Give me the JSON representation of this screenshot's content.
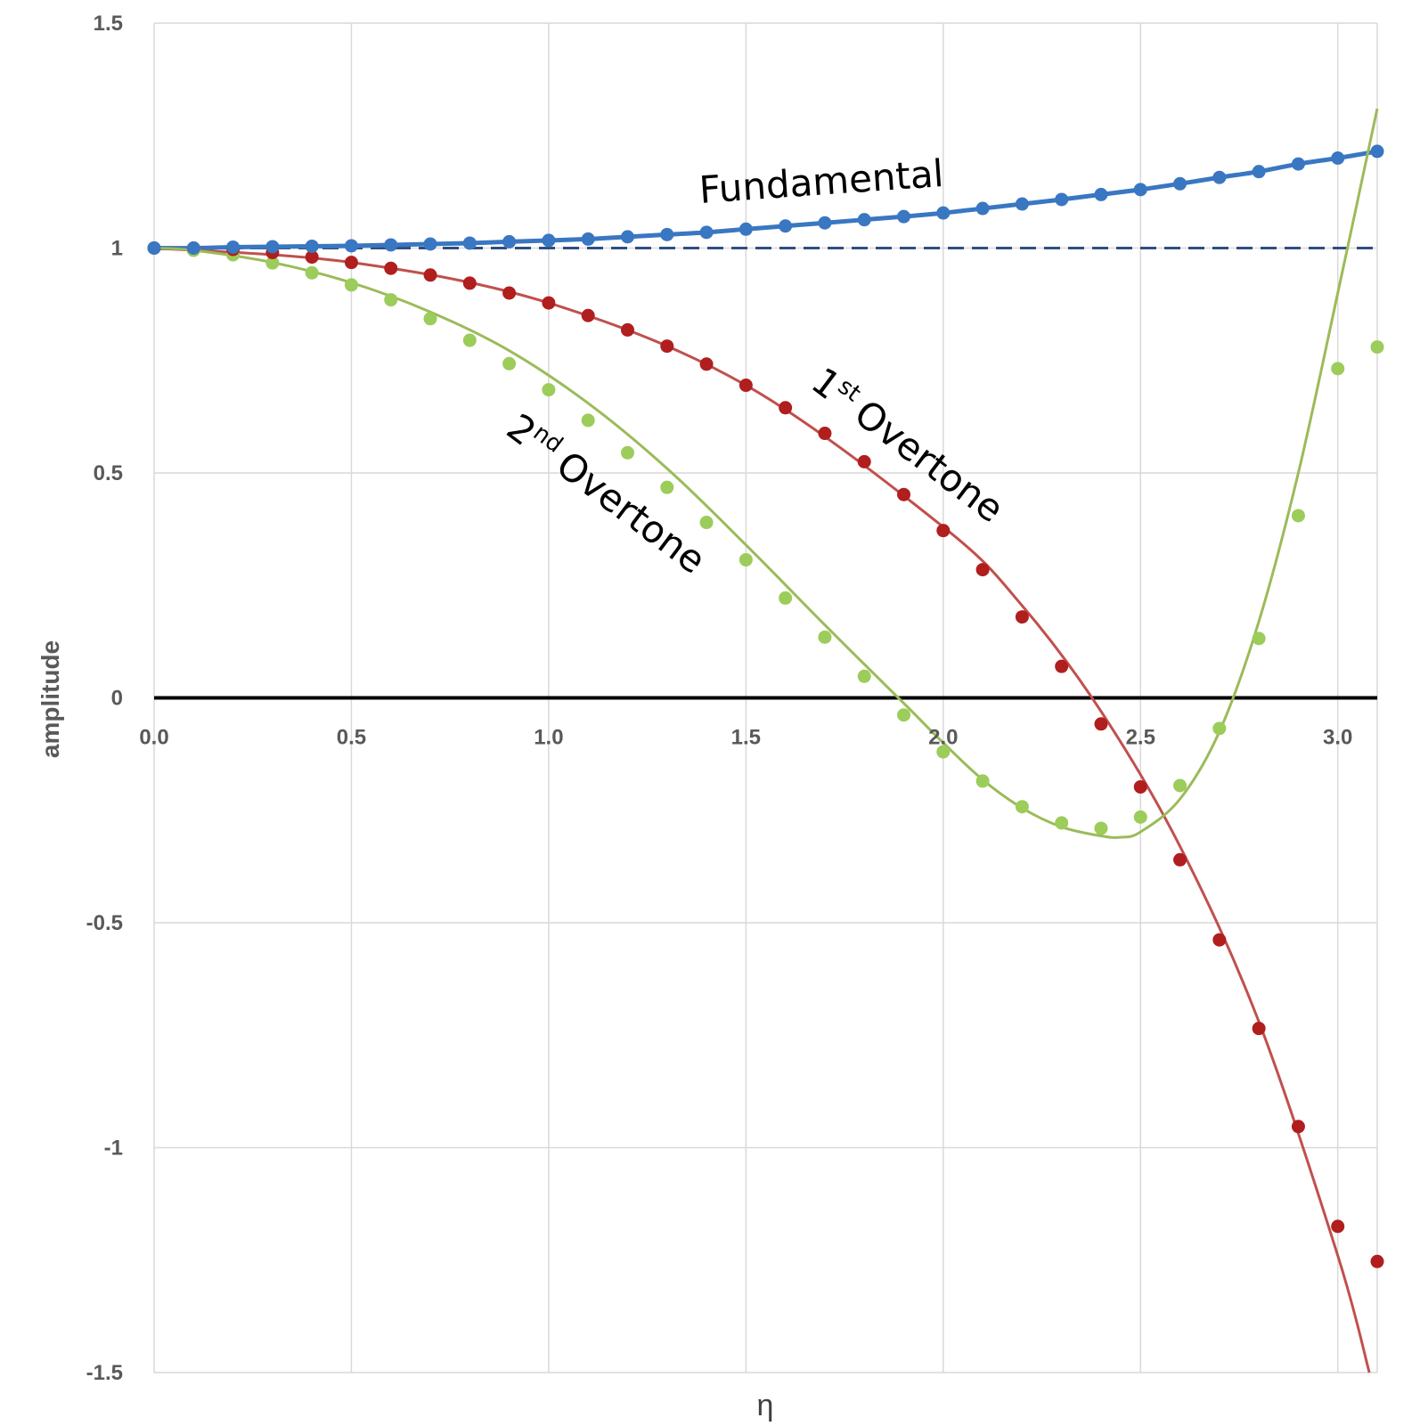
{
  "chart_data": {
    "type": "scatter",
    "title": "",
    "xlabel": "η",
    "ylabel": "amplitude",
    "xlim": [
      0,
      3.1
    ],
    "ylim": [
      -1.5,
      1.5
    ],
    "x_ticks": [
      "0.0",
      "0.5",
      "1.0",
      "1.5",
      "2.0",
      "2.5",
      "3.0"
    ],
    "y_ticks": [
      "1.5",
      "1",
      "0.5",
      "0",
      "-0.5",
      "-1",
      "-1.5"
    ],
    "grid": true,
    "reference_lines": [
      {
        "name": "unit-amplitude",
        "y": 1,
        "style": "dashed",
        "color": "#2f4f7f"
      },
      {
        "name": "zero-axis",
        "y": 0,
        "style": "solid",
        "color": "#000000"
      }
    ],
    "annotations": {
      "fundamental": "Fundamental",
      "first_overtone": {
        "number": "1",
        "suffix": "st",
        "word": "Overtone"
      },
      "second_overtone": {
        "number": "2",
        "suffix": "nd",
        "word": "Overtone"
      }
    },
    "x": [
      0.0,
      0.1,
      0.2,
      0.3,
      0.4,
      0.5,
      0.6,
      0.7,
      0.8,
      0.9,
      1.0,
      1.1,
      1.2,
      1.3,
      1.4,
      1.5,
      1.6,
      1.7,
      1.8,
      1.9,
      2.0,
      2.1,
      2.2,
      2.3,
      2.4,
      2.5,
      2.6,
      2.7,
      2.8,
      2.9,
      3.0,
      3.1
    ],
    "series": [
      {
        "name": "Fundamental",
        "color": "#3a77c2",
        "line": "connected",
        "points": [
          1.0,
          1.0,
          1.002,
          1.003,
          1.004,
          1.005,
          1.007,
          1.009,
          1.011,
          1.014,
          1.017,
          1.02,
          1.025,
          1.03,
          1.035,
          1.042,
          1.049,
          1.056,
          1.063,
          1.07,
          1.078,
          1.088,
          1.098,
          1.108,
          1.119,
          1.13,
          1.143,
          1.157,
          1.17,
          1.187,
          1.2,
          1.215
        ]
      },
      {
        "name": "1st Overtone",
        "color": "#b01e1e",
        "line_color": "#c0504d",
        "points": [
          1.0,
          1.0,
          0.997,
          0.99,
          0.98,
          0.968,
          0.955,
          0.94,
          0.922,
          0.9,
          0.878,
          0.85,
          0.818,
          0.782,
          0.742,
          0.695,
          0.645,
          0.588,
          0.525,
          0.452,
          0.372,
          0.285,
          0.18,
          0.07,
          -0.058,
          -0.198,
          -0.36,
          -0.538,
          -0.735,
          -0.953,
          -1.175,
          -1.253
        ],
        "fit_curve": {
          "x": [
            0.0,
            0.5,
            1.0,
            1.5,
            2.0,
            2.2,
            2.4,
            2.6,
            2.8,
            3.0,
            3.08
          ],
          "y": [
            1.0,
            0.968,
            0.878,
            0.695,
            0.38,
            0.205,
            -0.03,
            -0.33,
            -0.72,
            -1.24,
            -1.5
          ]
        }
      },
      {
        "name": "2nd Overtone",
        "color": "#9ccc5a",
        "line_color": "#9bbb59",
        "points": [
          1.0,
          0.995,
          0.985,
          0.967,
          0.945,
          0.918,
          0.885,
          0.843,
          0.795,
          0.743,
          0.685,
          0.617,
          0.545,
          0.468,
          0.39,
          0.307,
          0.222,
          0.135,
          0.048,
          -0.038,
          -0.12,
          -0.185,
          -0.242,
          -0.278,
          -0.29,
          -0.265,
          -0.195,
          -0.068,
          0.132,
          0.405,
          0.732,
          0.78
        ],
        "fit_curve": {
          "x": [
            0.0,
            0.1,
            0.3,
            0.5,
            0.7,
            0.9,
            1.1,
            1.3,
            1.5,
            1.7,
            1.9,
            2.0,
            2.1,
            2.2,
            2.3,
            2.4,
            2.45,
            2.5,
            2.6,
            2.7,
            2.8,
            2.9,
            3.0,
            3.1
          ],
          "y": [
            1.0,
            0.995,
            0.968,
            0.923,
            0.858,
            0.772,
            0.655,
            0.51,
            0.34,
            0.162,
            -0.012,
            -0.1,
            -0.182,
            -0.245,
            -0.287,
            -0.307,
            -0.31,
            -0.298,
            -0.225,
            -0.075,
            0.17,
            0.5,
            0.9,
            1.31
          ]
        }
      }
    ]
  }
}
